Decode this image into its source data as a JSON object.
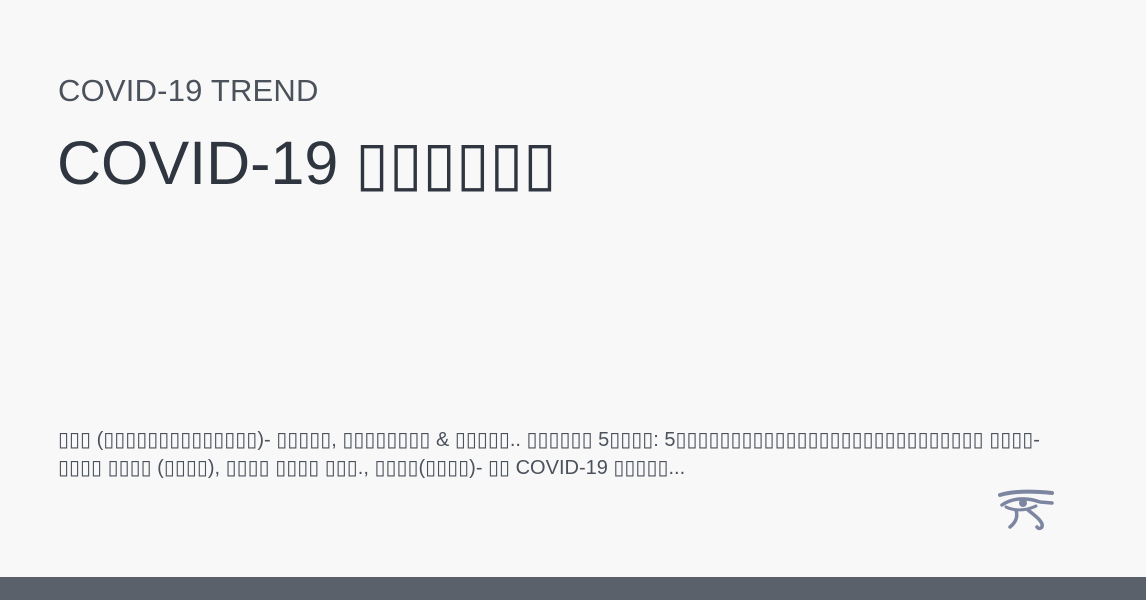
{
  "header": {
    "eyebrow": "COVID-19 TREND",
    "title": "COVID-19 ▯▯▯▯▯▯"
  },
  "summary": {
    "text": "▯▯▯ (▯▯▯▯▯▯▯▯▯▯▯▯▯▯)- ▯▯▯▯▯, ▯▯▯▯▯▯▯▯ & ▯▯▯▯▯.. ▯▯▯▯▯▯ 5▯▯▯▯: 5▯▯▯▯▯▯▯▯▯▯▯▯▯▯▯▯▯▯▯▯▯▯▯▯▯▯▯▯ ▯▯▯▯- ▯▯▯▯ ▯▯▯▯ (▯▯▯▯), ▯▯▯▯ ▯▯▯▯ ▯▯▯., ▯▯▯▯(▯▯▯▯)- ▯▯ COVID-19 ▯▯▯▯▯..."
  },
  "logo": {
    "icon": "eye-of-horus-icon",
    "color": "#7d86a0"
  },
  "colors": {
    "background": "#f8f8f9",
    "text_primary": "#2f3640",
    "text_secondary": "#4b525b",
    "footer_bar": "#5b616b"
  }
}
